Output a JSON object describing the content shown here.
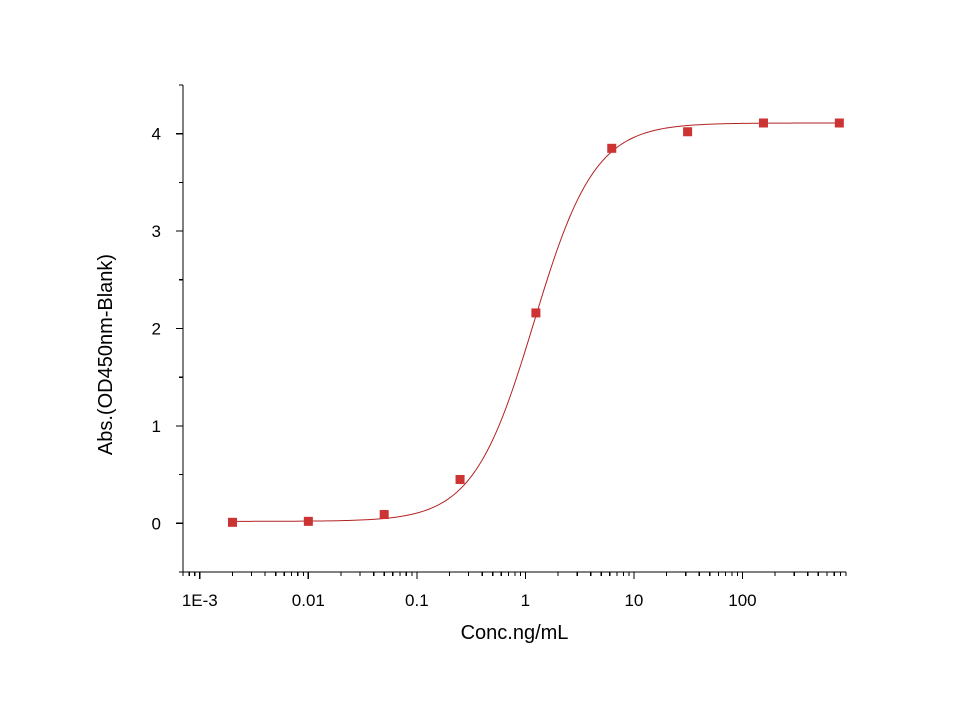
{
  "chart_data": {
    "type": "scatter",
    "title": "",
    "xlabel": "Conc.ng/mL",
    "ylabel": "Abs.(OD450nm-Blank)",
    "x_scale": "log",
    "xlim": [
      0.0007,
      900
    ],
    "ylim": [
      -0.5,
      4.5
    ],
    "x_ticks": [
      {
        "value": 0.001,
        "label": "1E-3"
      },
      {
        "value": 0.01,
        "label": "0.01"
      },
      {
        "value": 0.1,
        "label": "0.1"
      },
      {
        "value": 1,
        "label": "1"
      },
      {
        "value": 10,
        "label": "10"
      },
      {
        "value": 100,
        "label": "100"
      }
    ],
    "y_ticks": [
      {
        "value": 0,
        "label": "0"
      },
      {
        "value": 1,
        "label": "1"
      },
      {
        "value": 2,
        "label": "2"
      },
      {
        "value": 3,
        "label": "3"
      },
      {
        "value": 4,
        "label": "4"
      }
    ],
    "grid": false,
    "legend": "none",
    "series": [
      {
        "marker": "square",
        "color": "#cc3333",
        "points": [
          {
            "x": 0.002,
            "y": 0.01
          },
          {
            "x": 0.01,
            "y": 0.02
          },
          {
            "x": 0.05,
            "y": 0.09
          },
          {
            "x": 0.25,
            "y": 0.45
          },
          {
            "x": 1.25,
            "y": 2.16
          },
          {
            "x": 6.25,
            "y": 3.85
          },
          {
            "x": 31.25,
            "y": 4.02
          },
          {
            "x": 156.25,
            "y": 4.11
          },
          {
            "x": 781.25,
            "y": 4.11
          }
        ]
      }
    ],
    "fit_curve": {
      "model": "4PL",
      "color": "#b22222",
      "bottom": 0.02,
      "top": 4.11,
      "ec50": 1.2,
      "hill": 1.55
    }
  }
}
